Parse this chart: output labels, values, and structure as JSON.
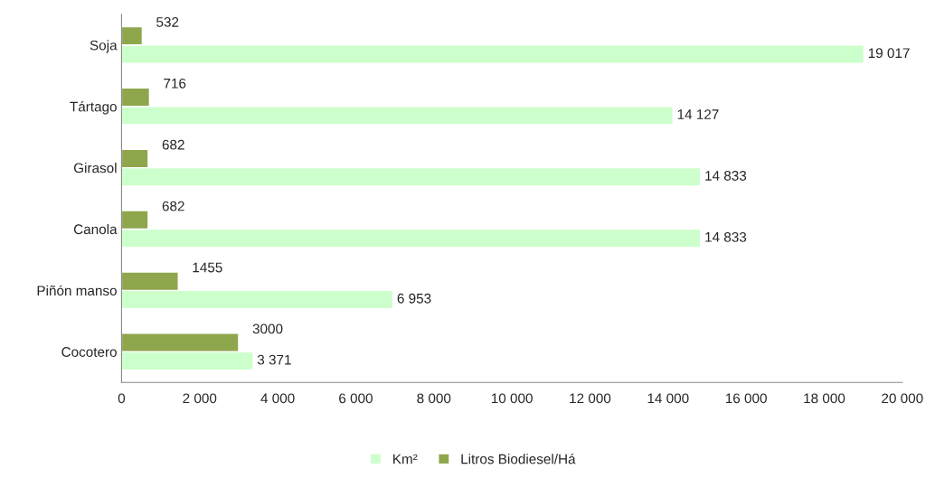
{
  "chart_data": {
    "type": "bar",
    "orientation": "horizontal",
    "categories": [
      "Soja",
      "Tártago",
      "Girasol",
      "Canola",
      "Piñón manso",
      "Cocotero"
    ],
    "series": [
      {
        "name": "Km²",
        "color": "#ccffcc",
        "values": [
          19017,
          14127,
          14833,
          14833,
          6953,
          3371
        ],
        "value_labels": [
          "19 017",
          "14 127",
          "14 833",
          "14 833",
          "6 953",
          "3 371"
        ]
      },
      {
        "name": "Litros Biodiesel/Há",
        "color": "#8ea64c",
        "values": [
          532,
          716,
          682,
          682,
          1455,
          3000
        ],
        "value_labels": [
          "532",
          "716",
          "682",
          "682",
          "1455",
          "3000"
        ]
      }
    ],
    "xlim": [
      0,
      20000
    ],
    "xticks": [
      0,
      {
        "value": 2000,
        "label": "2 000"
      },
      {
        "value": 4000,
        "label": "4 000"
      },
      {
        "value": 6000,
        "label": "6 000"
      },
      {
        "value": 8000,
        "label": "8 000"
      },
      {
        "value": 10000,
        "label": "10 000"
      },
      {
        "value": 12000,
        "label": "12 000"
      },
      {
        "value": 14000,
        "label": "14 000"
      },
      {
        "value": 16000,
        "label": "16 000"
      },
      {
        "value": 18000,
        "label": "18 000"
      },
      {
        "value": 20000,
        "label": "20 000"
      }
    ],
    "grid": false,
    "legend": "bottom"
  }
}
